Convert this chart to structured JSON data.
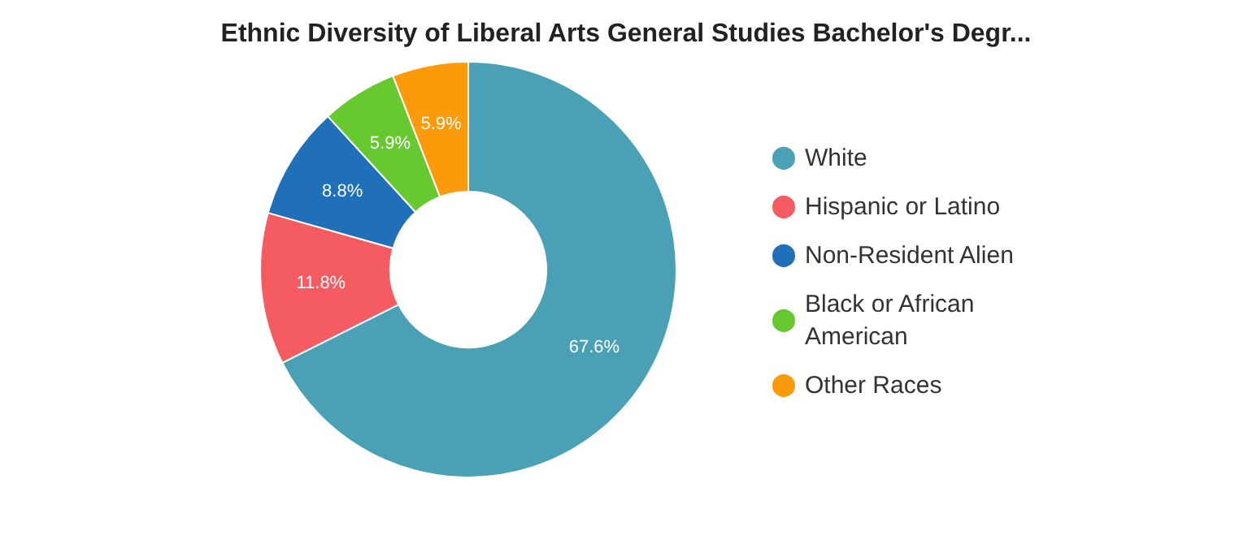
{
  "chart_data": {
    "type": "donut",
    "title": "Ethnic Diversity of Liberal Arts General Studies Bachelor's Degr...",
    "categories": [
      "White",
      "Hispanic or Latino",
      "Non-Resident Alien",
      "Black or African American",
      "Other Races"
    ],
    "values": [
      67.6,
      11.8,
      8.8,
      5.9,
      5.9
    ],
    "colors": [
      "#4aa0b5",
      "#f55c62",
      "#1f70b8",
      "#66c92f",
      "#fc9a0a"
    ],
    "value_labels": [
      "67.6%",
      "11.8%",
      "8.8%",
      "5.9%",
      "5.9%"
    ],
    "legend": "right"
  }
}
